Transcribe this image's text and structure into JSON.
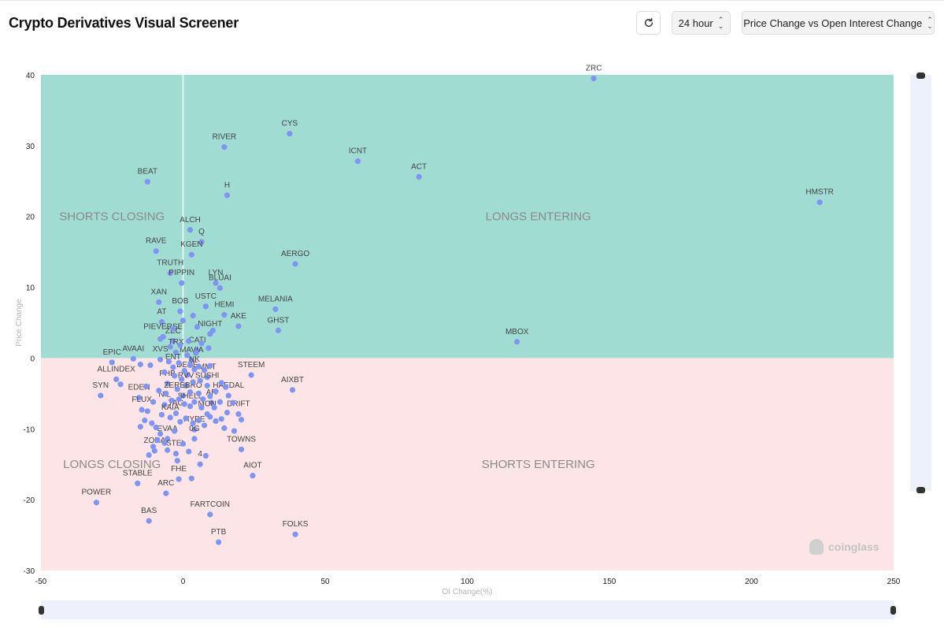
{
  "header": {
    "title": "Crypto Derivatives Visual Screener",
    "refresh_icon": "refresh-icon",
    "period": "24 hour",
    "metric": "Price Change vs Open Interest Change"
  },
  "watermark": "coinglass",
  "colors": {
    "positive_zone": "#a0dcd2",
    "negative_zone": "#fde4e6",
    "point": "#7f95f5",
    "slider": "#eef0fb"
  },
  "chart_data": {
    "type": "scatter",
    "xlabel": "OI Change(%)",
    "ylabel": "Price Change",
    "xlim": [
      -50,
      250
    ],
    "ylim": [
      -30,
      40
    ],
    "xticks": [
      "-50",
      "0",
      "50",
      "100",
      "150",
      "200",
      "250"
    ],
    "yticks": [
      "40",
      "30",
      "20",
      "10",
      "0",
      "-10",
      "-20",
      "-30"
    ],
    "quadrants": [
      {
        "label": "SHORTS CLOSING",
        "x": -25,
        "y": 20
      },
      {
        "label": "LONGS ENTERING",
        "x": 125,
        "y": 20
      },
      {
        "label": "LONGS CLOSING",
        "x": -25,
        "y": -15
      },
      {
        "label": "SHORTS ENTERING",
        "x": 125,
        "y": -15
      }
    ],
    "points": [
      {
        "label": "ZRC",
        "x": 144.5,
        "y": 39.5
      },
      {
        "label": "CYS",
        "x": 37.5,
        "y": 31.7
      },
      {
        "label": "RIVER",
        "x": 14.5,
        "y": 29.8
      },
      {
        "label": "ICNT",
        "x": 61.5,
        "y": 27.8
      },
      {
        "label": "ACT",
        "x": 83.0,
        "y": 25.6
      },
      {
        "label": "BEAT",
        "x": -12.5,
        "y": 24.9
      },
      {
        "label": "H",
        "x": 15.5,
        "y": 23.0
      },
      {
        "label": "HMSTR",
        "x": 224.0,
        "y": 22.0
      },
      {
        "label": "ALCH",
        "x": 2.5,
        "y": 18.1
      },
      {
        "label": "Q",
        "x": 6.5,
        "y": 16.4
      },
      {
        "label": "RAVE",
        "x": -9.5,
        "y": 15.1
      },
      {
        "label": "KGEN",
        "x": 3.0,
        "y": 14.6
      },
      {
        "label": "AERGO",
        "x": 39.5,
        "y": 13.3
      },
      {
        "label": "TRUTH",
        "x": -4.5,
        "y": 12.0
      },
      {
        "label": "PIPPIN",
        "x": -0.5,
        "y": 10.6
      },
      {
        "label": "LYN",
        "x": 11.5,
        "y": 10.6
      },
      {
        "label": "BLUAI",
        "x": 13.0,
        "y": 9.9
      },
      {
        "label": "XAN",
        "x": -8.5,
        "y": 7.9
      },
      {
        "label": "BOB",
        "x": -1.0,
        "y": 6.6
      },
      {
        "label": "USTC",
        "x": 8.0,
        "y": 7.3
      },
      {
        "label": "HEMI",
        "x": 14.5,
        "y": 6.1
      },
      {
        "label": "MELANIA",
        "x": 32.5,
        "y": 6.9
      },
      {
        "label": "AT",
        "x": -7.5,
        "y": 5.1
      },
      {
        "label": "AKE",
        "x": 19.5,
        "y": 4.5
      },
      {
        "label": "GHST",
        "x": 33.5,
        "y": 3.9
      },
      {
        "label": "NIGHT",
        "x": 9.5,
        "y": 3.4
      },
      {
        "label": "PIEVERSE",
        "x": -7.0,
        "y": 3.0
      },
      {
        "label": "MBOX",
        "x": 117.5,
        "y": 2.3
      },
      {
        "label": "ZEC",
        "x": -3.5,
        "y": 2.4
      },
      {
        "label": "CATI",
        "x": 5.0,
        "y": 1.1
      },
      {
        "label": "AVAAI",
        "x": -17.5,
        "y": -0.1
      },
      {
        "label": "TRX",
        "x": -2.5,
        "y": 0.8
      },
      {
        "label": "XVS",
        "x": -8.0,
        "y": -0.2
      },
      {
        "label": "MAVIA",
        "x": 3.0,
        "y": -0.3
      },
      {
        "label": "EPIC",
        "x": -25.0,
        "y": -0.6
      },
      {
        "label": "ENT",
        "x": -3.5,
        "y": -1.3
      },
      {
        "label": "NK",
        "x": 4.0,
        "y": -1.6
      },
      {
        "label": "DEXE",
        "x": 1.5,
        "y": -2.4
      },
      {
        "label": "STEEM",
        "x": 24.0,
        "y": -2.4
      },
      {
        "label": "MMT",
        "x": 8.5,
        "y": -2.7
      },
      {
        "label": "ALLINDEX",
        "x": -23.5,
        "y": -3.0
      },
      {
        "label": "PHB",
        "x": -5.5,
        "y": -3.6
      },
      {
        "label": "RVV",
        "x": 1.0,
        "y": -3.9
      },
      {
        "label": "SUSHI",
        "x": 8.5,
        "y": -3.9
      },
      {
        "label": "AIXBT",
        "x": 38.5,
        "y": -4.5
      },
      {
        "label": "SYN",
        "x": -29.0,
        "y": -5.3
      },
      {
        "label": "ZEREBRO",
        "x": 0.0,
        "y": -5.3
      },
      {
        "label": "HAEDAL",
        "x": 16.0,
        "y": -5.3
      },
      {
        "label": "EDEN",
        "x": -15.5,
        "y": -5.6
      },
      {
        "label": "NIL",
        "x": -6.5,
        "y": -6.6
      },
      {
        "label": "SHELL",
        "x": 2.5,
        "y": -6.8
      },
      {
        "label": "AR",
        "x": 10.0,
        "y": -6.3
      },
      {
        "label": "FLUX",
        "x": -14.5,
        "y": -7.3
      },
      {
        "label": "TAG",
        "x": -2.5,
        "y": -7.8
      },
      {
        "label": "MON",
        "x": 8.5,
        "y": -7.9
      },
      {
        "label": "DRIFT",
        "x": 19.5,
        "y": -7.9
      },
      {
        "label": "KAIA",
        "x": -4.5,
        "y": -8.4
      },
      {
        "label": "HYPE",
        "x": 4.0,
        "y": -10.1
      },
      {
        "label": "EVAA",
        "x": -5.5,
        "y": -11.4
      },
      {
        "label": "0G",
        "x": 4.0,
        "y": -11.4
      },
      {
        "label": "TOWNS",
        "x": 20.5,
        "y": -12.9
      },
      {
        "label": "ZORA",
        "x": -10.0,
        "y": -13.1
      },
      {
        "label": "STEL",
        "x": -2.5,
        "y": -13.5
      },
      {
        "label": "4",
        "x": 6.0,
        "y": -15.0
      },
      {
        "label": "FHE",
        "x": -1.5,
        "y": -17.1
      },
      {
        "label": "STABLE",
        "x": -16.0,
        "y": -17.7
      },
      {
        "label": "AIOT",
        "x": 24.5,
        "y": -16.6
      },
      {
        "label": "ARC",
        "x": -6.0,
        "y": -19.1
      },
      {
        "label": "POWER",
        "x": -30.5,
        "y": -20.4
      },
      {
        "label": "FARTCOIN",
        "x": 9.5,
        "y": -22.1
      },
      {
        "label": "BAS",
        "x": -12.0,
        "y": -23.0
      },
      {
        "label": "FOLKS",
        "x": 39.5,
        "y": -24.9
      },
      {
        "label": "PTB",
        "x": 12.5,
        "y": -26.0
      },
      {
        "label": "",
        "x": -13.5,
        "y": -8.8
      },
      {
        "label": "",
        "x": -11.0,
        "y": -9.2
      },
      {
        "label": "",
        "x": -9.5,
        "y": -9.8
      },
      {
        "label": "",
        "x": -8.0,
        "y": -10.7
      },
      {
        "label": "",
        "x": -10.5,
        "y": -12.5
      },
      {
        "label": "",
        "x": -6.5,
        "y": -12.0
      },
      {
        "label": "",
        "x": -3.0,
        "y": -10.3
      },
      {
        "label": "",
        "x": -1.0,
        "y": -9.0
      },
      {
        "label": "",
        "x": 1.0,
        "y": -8.5
      },
      {
        "label": "",
        "x": 3.5,
        "y": -9.2
      },
      {
        "label": "",
        "x": 5.5,
        "y": -8.8
      },
      {
        "label": "",
        "x": 7.5,
        "y": -9.5
      },
      {
        "label": "",
        "x": 9.5,
        "y": -8.3
      },
      {
        "label": "",
        "x": 11.5,
        "y": -8.9
      },
      {
        "label": "",
        "x": 13.5,
        "y": -8.6
      },
      {
        "label": "",
        "x": 15.5,
        "y": -7.7
      },
      {
        "label": "",
        "x": 11.0,
        "y": -7.0
      },
      {
        "label": "",
        "x": 13.0,
        "y": -6.2
      },
      {
        "label": "",
        "x": 6.5,
        "y": -7.0
      },
      {
        "label": "",
        "x": 4.0,
        "y": -6.2
      },
      {
        "label": "",
        "x": 0.5,
        "y": -6.5
      },
      {
        "label": "",
        "x": -1.5,
        "y": -5.8
      },
      {
        "label": "",
        "x": -4.0,
        "y": -6.0
      },
      {
        "label": "",
        "x": -6.0,
        "y": -5.0
      },
      {
        "label": "",
        "x": -8.5,
        "y": -4.6
      },
      {
        "label": "",
        "x": -2.0,
        "y": -4.4
      },
      {
        "label": "",
        "x": 2.5,
        "y": -4.8
      },
      {
        "label": "",
        "x": 5.5,
        "y": -5.0
      },
      {
        "label": "",
        "x": 7.0,
        "y": -5.8
      },
      {
        "label": "",
        "x": 9.5,
        "y": -5.4
      },
      {
        "label": "",
        "x": 11.5,
        "y": -4.7
      },
      {
        "label": "",
        "x": 13.5,
        "y": -3.5
      },
      {
        "label": "",
        "x": 6.0,
        "y": -3.2
      },
      {
        "label": "",
        "x": 3.5,
        "y": -3.4
      },
      {
        "label": "",
        "x": -0.5,
        "y": -3.0
      },
      {
        "label": "",
        "x": -3.0,
        "y": -2.5
      },
      {
        "label": "",
        "x": -6.5,
        "y": -2.0
      },
      {
        "label": "",
        "x": 0.5,
        "y": -1.8
      },
      {
        "label": "",
        "x": 2.5,
        "y": -1.0
      },
      {
        "label": "",
        "x": 5.5,
        "y": -1.2
      },
      {
        "label": "",
        "x": 7.5,
        "y": -1.7
      },
      {
        "label": "",
        "x": 9.5,
        "y": -1.1
      },
      {
        "label": "",
        "x": -1.5,
        "y": -0.7
      },
      {
        "label": "",
        "x": -5.0,
        "y": -0.5
      },
      {
        "label": "",
        "x": -11.5,
        "y": -1.0
      },
      {
        "label": "",
        "x": -15.0,
        "y": -0.9
      },
      {
        "label": "",
        "x": -22.0,
        "y": -3.7
      },
      {
        "label": "",
        "x": -13.0,
        "y": -4.0
      },
      {
        "label": "",
        "x": -10.5,
        "y": -6.2
      },
      {
        "label": "",
        "x": 1.5,
        "y": 0.4
      },
      {
        "label": "",
        "x": 4.5,
        "y": 0.7
      },
      {
        "label": "",
        "x": -4.5,
        "y": 1.6
      },
      {
        "label": "",
        "x": -1.0,
        "y": 1.8
      },
      {
        "label": "",
        "x": 2.0,
        "y": 2.4
      },
      {
        "label": "",
        "x": 6.5,
        "y": 2.1
      },
      {
        "label": "",
        "x": 9.0,
        "y": 1.4
      },
      {
        "label": "",
        "x": -8.0,
        "y": 2.7
      },
      {
        "label": "",
        "x": 10.5,
        "y": 3.9
      },
      {
        "label": "",
        "x": 5.0,
        "y": 4.4
      },
      {
        "label": "",
        "x": 0.0,
        "y": 5.3
      },
      {
        "label": "",
        "x": 3.5,
        "y": 6.0
      },
      {
        "label": "",
        "x": -3.5,
        "y": 4.1
      },
      {
        "label": "",
        "x": 0.0,
        "y": -12.1
      },
      {
        "label": "",
        "x": 2.0,
        "y": -13.2
      },
      {
        "label": "",
        "x": -2.0,
        "y": -14.5
      },
      {
        "label": "",
        "x": 3.0,
        "y": -17.0
      },
      {
        "label": "",
        "x": 8.0,
        "y": -13.8
      },
      {
        "label": "",
        "x": 14.5,
        "y": -9.9
      },
      {
        "label": "",
        "x": 18.0,
        "y": -10.3
      },
      {
        "label": "",
        "x": 20.5,
        "y": -8.7
      },
      {
        "label": "",
        "x": 17.5,
        "y": -6.3
      },
      {
        "label": "",
        "x": 15.0,
        "y": -4.1
      },
      {
        "label": "",
        "x": -15.0,
        "y": -9.7
      },
      {
        "label": "",
        "x": -12.5,
        "y": -7.5
      },
      {
        "label": "",
        "x": -7.5,
        "y": -8.0
      },
      {
        "label": "",
        "x": -9.0,
        "y": -11.6
      },
      {
        "label": "",
        "x": -12.0,
        "y": -13.7
      },
      {
        "label": "",
        "x": -5.5,
        "y": -13.0
      }
    ]
  }
}
